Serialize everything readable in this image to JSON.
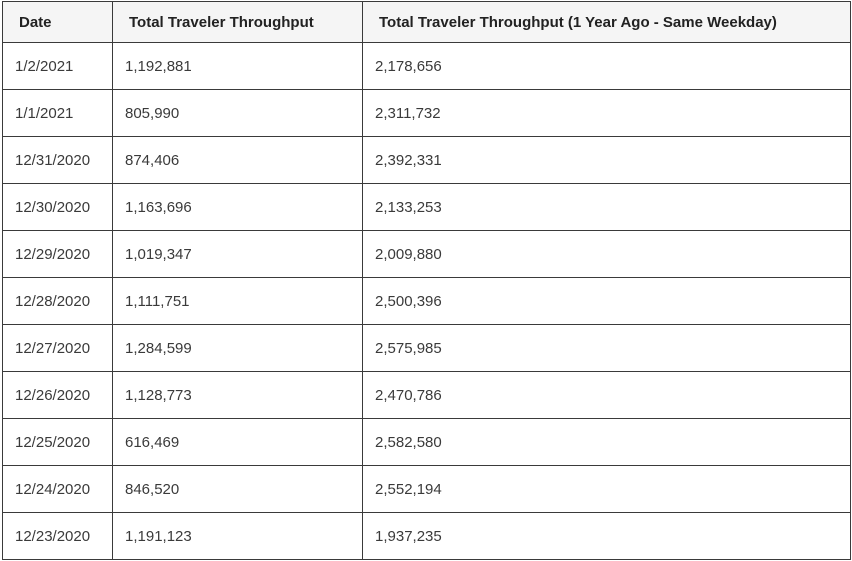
{
  "table": {
    "headers": [
      "Date",
      "Total Traveler Throughput",
      "Total Traveler Throughput (1 Year Ago - Same Weekday)"
    ],
    "rows": [
      [
        "1/2/2021",
        "1,192,881",
        "2,178,656"
      ],
      [
        "1/1/2021",
        "805,990",
        "2,311,732"
      ],
      [
        "12/31/2020",
        "874,406",
        "2,392,331"
      ],
      [
        "12/30/2020",
        "1,163,696",
        "2,133,253"
      ],
      [
        "12/29/2020",
        "1,019,347",
        "2,009,880"
      ],
      [
        "12/28/2020",
        "1,111,751",
        "2,500,396"
      ],
      [
        "12/27/2020",
        "1,284,599",
        "2,575,985"
      ],
      [
        "12/26/2020",
        "1,128,773",
        "2,470,786"
      ],
      [
        "12/25/2020",
        "616,469",
        "2,582,580"
      ],
      [
        "12/24/2020",
        "846,520",
        "2,552,194"
      ],
      [
        "12/23/2020",
        "1,191,123",
        "1,937,235"
      ]
    ]
  }
}
